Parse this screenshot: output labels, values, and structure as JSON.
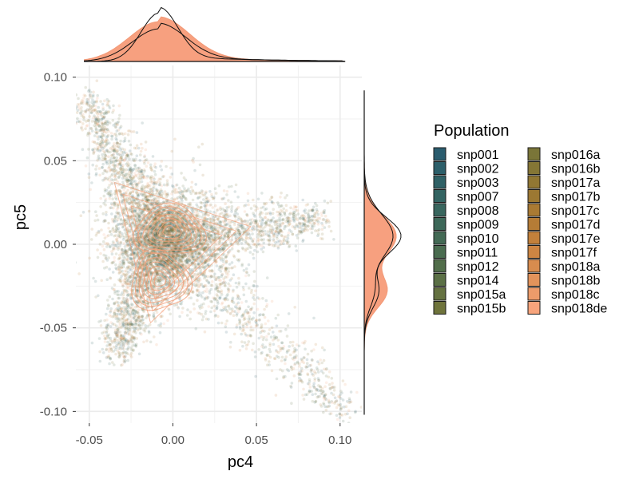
{
  "chart_data": {
    "type": "scatter",
    "xlabel": "pc4",
    "ylabel": "pc5",
    "xlim": [
      -0.058,
      0.113
    ],
    "ylim": [
      -0.107,
      0.107
    ],
    "x_ticks": [
      -0.05,
      0.0,
      0.05,
      0.1
    ],
    "x_tick_labels": [
      "-0.05",
      "0.00",
      "0.05",
      "0.10"
    ],
    "y_ticks": [
      -0.1,
      -0.05,
      0.0,
      0.05,
      0.1
    ],
    "y_tick_labels": [
      "-0.10",
      "-0.05",
      "0.00",
      "0.05",
      "0.10"
    ],
    "grid": true,
    "legend_title": "Population",
    "legend_position": "right",
    "series": [
      {
        "name": "snp001",
        "color": "#2a5c6e"
      },
      {
        "name": "snp002",
        "color": "#2c5f6a"
      },
      {
        "name": "snp003",
        "color": "#2f6166"
      },
      {
        "name": "snp007",
        "color": "#336462"
      },
      {
        "name": "snp008",
        "color": "#38665e"
      },
      {
        "name": "snp009",
        "color": "#3d6859"
      },
      {
        "name": "snp010",
        "color": "#436a55"
      },
      {
        "name": "snp011",
        "color": "#4a6c50"
      },
      {
        "name": "snp012",
        "color": "#526e4b"
      },
      {
        "name": "snp014",
        "color": "#5b7046"
      },
      {
        "name": "snp015a",
        "color": "#657241"
      },
      {
        "name": "snp015b",
        "color": "#6f743c"
      },
      {
        "name": "snp016a",
        "color": "#7a7538"
      },
      {
        "name": "snp016b",
        "color": "#857635"
      },
      {
        "name": "snp017a",
        "color": "#917733"
      },
      {
        "name": "snp017b",
        "color": "#9c7832"
      },
      {
        "name": "snp017c",
        "color": "#a97a33"
      },
      {
        "name": "snp017d",
        "color": "#b57c36"
      },
      {
        "name": "snp017e",
        "color": "#c2803b"
      },
      {
        "name": "snp017f",
        "color": "#cd8543"
      },
      {
        "name": "snp018a",
        "color": "#d88c4e"
      },
      {
        "name": "snp018b",
        "color": "#e3935b"
      },
      {
        "name": "snp018c",
        "color": "#ed9b6a"
      },
      {
        "name": "snp018de",
        "color": "#f7a47c"
      }
    ],
    "scatter_shape": {
      "center": [
        -0.005,
        0.002
      ],
      "arms": [
        {
          "toward": [
            -0.052,
            0.085
          ]
        },
        {
          "toward": [
            0.088,
            0.015
          ]
        },
        {
          "toward": [
            0.105,
            -0.1
          ]
        },
        {
          "toward": [
            -0.035,
            -0.065
          ]
        }
      ]
    },
    "density_peaks": [
      {
        "x": -0.002,
        "y": 0.008
      },
      {
        "x": -0.008,
        "y": -0.022
      }
    ],
    "marginal_x_peak": -0.008,
    "marginal_y_peak": 0.005
  }
}
